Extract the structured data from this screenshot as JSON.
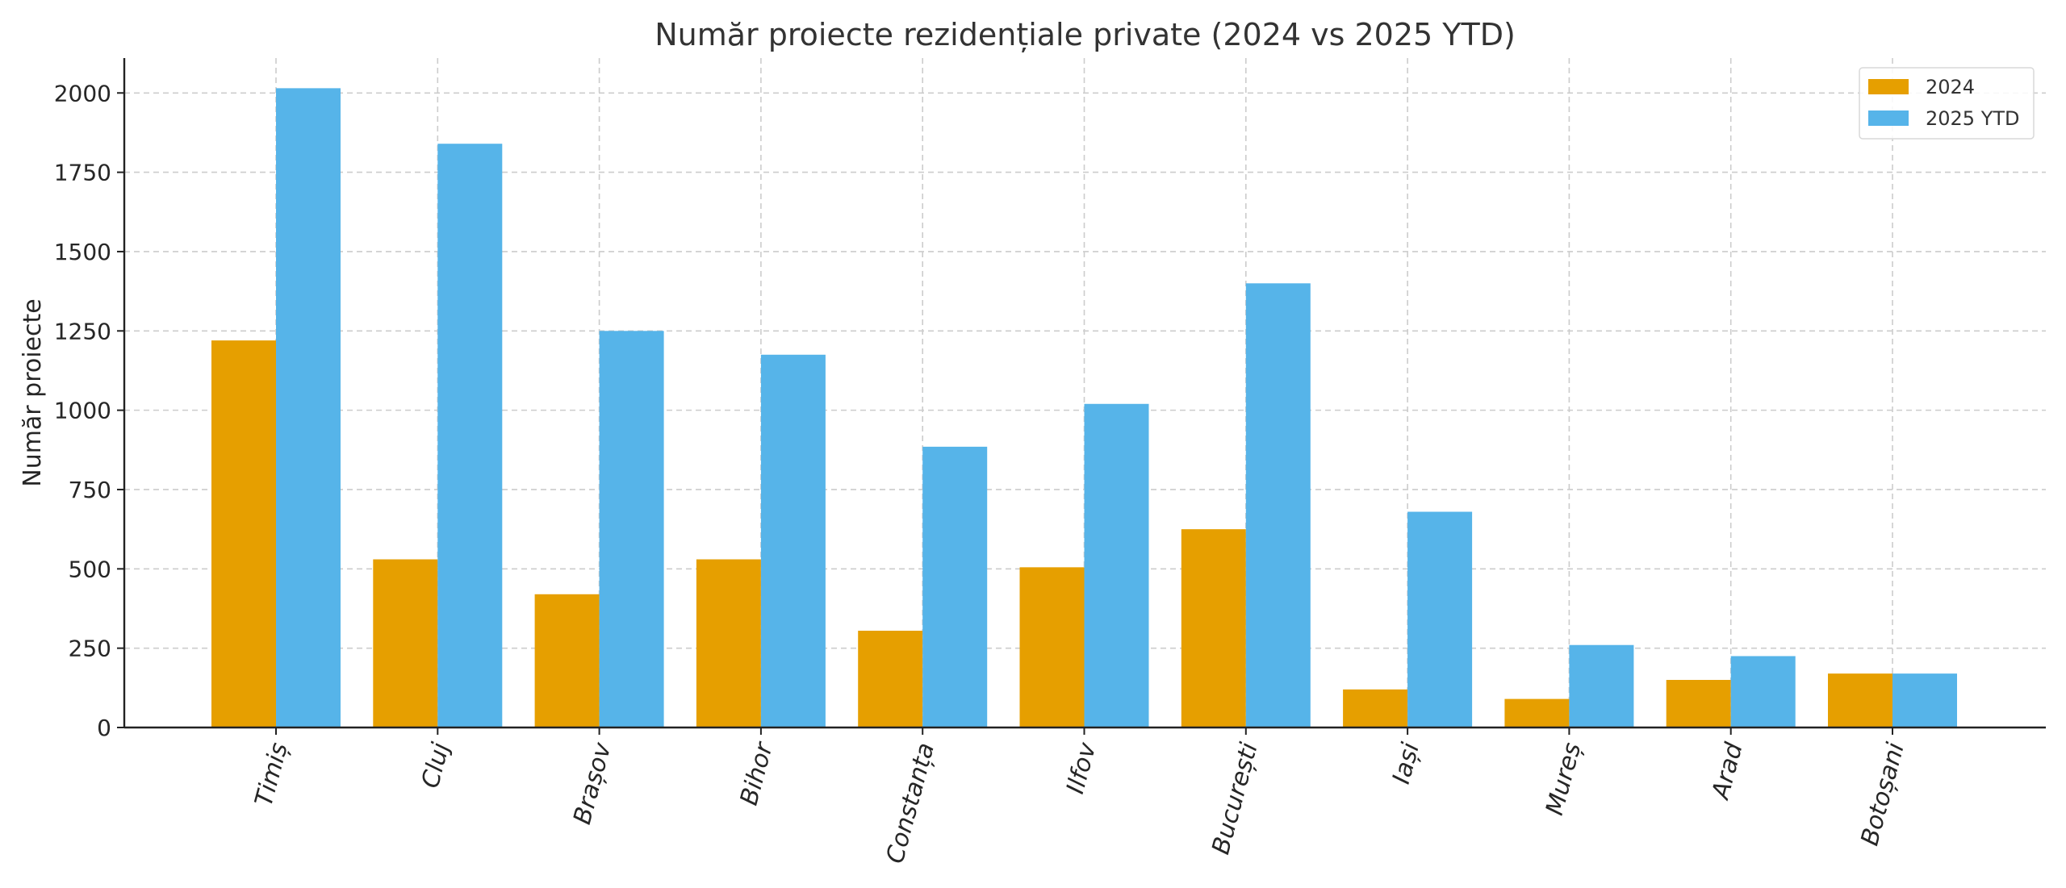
{
  "chart_data": {
    "type": "bar",
    "title": "Număr proiecte rezidențiale private (2024 vs 2025 YTD)",
    "xlabel": "",
    "ylabel": "Număr proiecte",
    "ylim": [
      0,
      2110
    ],
    "yticks": [
      0,
      250,
      500,
      750,
      1000,
      1250,
      1500,
      1750,
      2000
    ],
    "grid": true,
    "legend_position": "top-right",
    "categories": [
      "Timiș",
      "Cluj",
      "Brașov",
      "Bihor",
      "Constanța",
      "Ilfov",
      "București",
      "Iași",
      "Mureș",
      "Arad",
      "Botoșani"
    ],
    "series": [
      {
        "name": "2024",
        "color": "#E69F00",
        "values": [
          1220,
          530,
          420,
          530,
          305,
          505,
          625,
          120,
          90,
          150,
          170
        ]
      },
      {
        "name": "2025 YTD",
        "color": "#56B4E9",
        "values": [
          2015,
          1840,
          1250,
          1175,
          885,
          1020,
          1400,
          680,
          260,
          225,
          170
        ]
      }
    ]
  }
}
